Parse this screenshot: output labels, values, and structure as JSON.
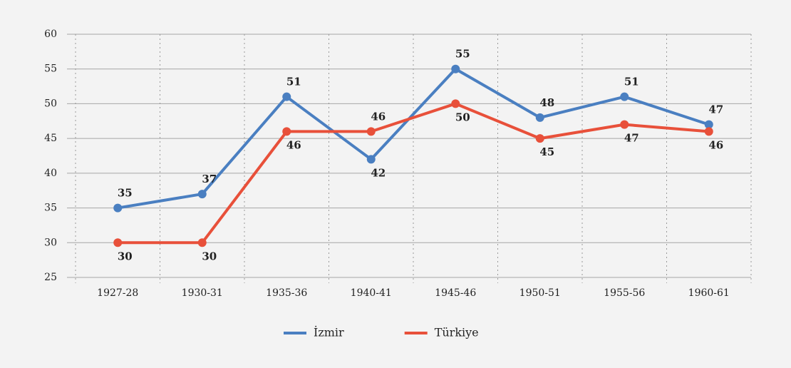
{
  "chart_data": {
    "type": "line",
    "categories": [
      "1927-28",
      "1930-31",
      "1935-36",
      "1940-41",
      "1945-46",
      "1950-51",
      "1955-56",
      "1960-61"
    ],
    "series": [
      {
        "name": "İzmir",
        "color": "#4a7fc1",
        "values": [
          35,
          37,
          51,
          42,
          55,
          48,
          51,
          47
        ]
      },
      {
        "name": "Türkiye",
        "color": "#e8503a",
        "values": [
          30,
          30,
          46,
          46,
          50,
          45,
          47,
          46
        ]
      }
    ],
    "ylim": [
      25,
      60
    ],
    "yticks": [
      25,
      30,
      35,
      40,
      45,
      50,
      55,
      60
    ],
    "grid": true,
    "legend": "bottom"
  }
}
